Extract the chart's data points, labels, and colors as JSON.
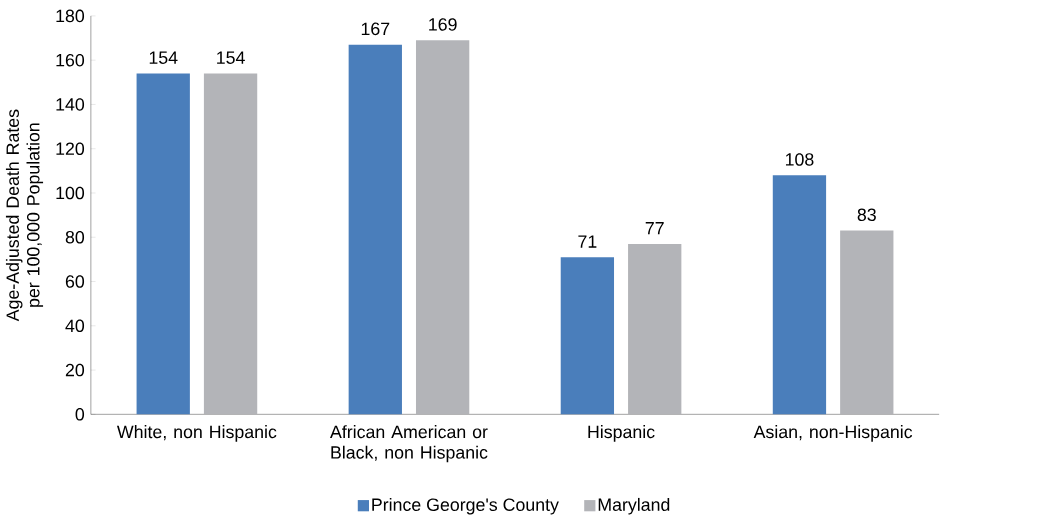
{
  "chart_data": {
    "type": "bar",
    "ylabel": "Age-Adjusted Death Rates per 100,000 Population",
    "categories": [
      "White, non Hispanic",
      "African American or Black, non Hispanic",
      "Hispanic",
      "Asian, non-Hispanic"
    ],
    "series": [
      {
        "name": "Prince George's County",
        "color": "#4a7ebb",
        "values": [
          154,
          167,
          71,
          108
        ]
      },
      {
        "name": "Maryland",
        "color": "#b3b4b8",
        "values": [
          154,
          169,
          77,
          83
        ]
      }
    ],
    "ylim": [
      0,
      180
    ],
    "yticks": [
      0,
      20,
      40,
      60,
      80,
      100,
      120,
      140,
      160,
      180
    ],
    "data_labels": true,
    "legend": "bottom",
    "grid": false
  }
}
